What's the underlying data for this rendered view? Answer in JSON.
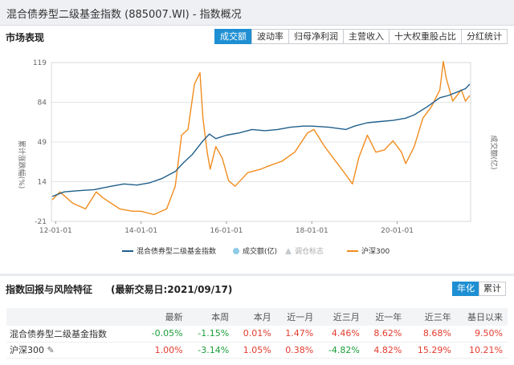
{
  "window": {
    "title": "混合债券型二级基金指数 (885007.WI) - 指数概况"
  },
  "market": {
    "header": "市场表现",
    "tabs": [
      "成交额",
      "波动率",
      "归母净利润",
      "主营收入",
      "十大权重股占比",
      "分红统计"
    ],
    "active_tab": 0
  },
  "returns": {
    "header": "指数回报与风险特征",
    "date_text": "(最新交易日:2021/09/17)",
    "toggle": [
      "年化",
      "累计"
    ],
    "active_toggle": 0,
    "columns": [
      "最新",
      "本周",
      "本月",
      "近一月",
      "近三月",
      "近一年",
      "近三年",
      "基日以来"
    ],
    "rows": [
      {
        "name": "混合债券型二级基金指数",
        "values": [
          "-0.05%",
          "-1.15%",
          "0.01%",
          "1.47%",
          "4.46%",
          "8.62%",
          "8.68%",
          "9.50%"
        ]
      },
      {
        "name": "沪深300",
        "values": [
          "1.00%",
          "-3.14%",
          "1.05%",
          "0.38%",
          "-4.82%",
          "4.82%",
          "15.29%",
          "10.21%"
        ]
      }
    ]
  },
  "colors": {
    "accent": "#1e8fd3",
    "series_fund": "#1f5f8b",
    "series_hs300": "#f08c1e",
    "up": "#e33b2e",
    "down": "#1a9f3a"
  },
  "chart_data": {
    "type": "line",
    "ylabel": "累计涨跌幅(%)",
    "y2label": "成交额(亿)",
    "ylim": [
      -21,
      119
    ],
    "yticks": [
      -21,
      14,
      49,
      84,
      119
    ],
    "xticks": [
      "12-01-01",
      "14-01-01",
      "16-01-01",
      "18-01-01",
      "20-01-01"
    ],
    "xlim": [
      2011.9,
      2021.72
    ],
    "grid": true,
    "legend": {
      "placement": "bottom",
      "items": [
        "混合债券型二级基金指数",
        "成交额(亿)",
        "调仓标志",
        "沪深300"
      ]
    },
    "series": [
      {
        "name": "混合债券型二级基金指数",
        "x": [
          2011.92,
          2012.2,
          2012.5,
          2012.9,
          2013.3,
          2013.6,
          2013.9,
          2014.2,
          2014.5,
          2014.8,
          2015.0,
          2015.2,
          2015.45,
          2015.6,
          2015.75,
          2016.0,
          2016.3,
          2016.6,
          2016.9,
          2017.2,
          2017.5,
          2017.8,
          2018.0,
          2018.4,
          2018.8,
          2019.0,
          2019.3,
          2019.6,
          2019.9,
          2020.2,
          2020.4,
          2020.7,
          2021.0,
          2021.2,
          2021.4,
          2021.6,
          2021.7
        ],
        "y": [
          1,
          5,
          6,
          7,
          10,
          12,
          11,
          13,
          17,
          23,
          31,
          38,
          50,
          56,
          52,
          55,
          57,
          60,
          59,
          60,
          62,
          63,
          63,
          62,
          60,
          63,
          66,
          67,
          68,
          70,
          73,
          80,
          88,
          90,
          93,
          96,
          100
        ]
      },
      {
        "name": "沪深300",
        "x": [
          2011.92,
          2012.1,
          2012.4,
          2012.7,
          2012.95,
          2013.1,
          2013.5,
          2013.8,
          2014.0,
          2014.3,
          2014.6,
          2014.8,
          2014.95,
          2015.1,
          2015.25,
          2015.38,
          2015.45,
          2015.55,
          2015.62,
          2015.75,
          2015.9,
          2016.05,
          2016.2,
          2016.5,
          2016.8,
          2017.0,
          2017.3,
          2017.6,
          2017.9,
          2018.05,
          2018.3,
          2018.6,
          2018.8,
          2018.95,
          2019.1,
          2019.3,
          2019.5,
          2019.7,
          2019.9,
          2020.1,
          2020.2,
          2020.4,
          2020.6,
          2020.8,
          2021.0,
          2021.08,
          2021.15,
          2021.3,
          2021.5,
          2021.6,
          2021.7
        ],
        "y": [
          -2,
          5,
          -5,
          -10,
          5,
          0,
          -10,
          -12,
          -12,
          -15,
          -10,
          10,
          55,
          60,
          100,
          110,
          70,
          40,
          25,
          45,
          35,
          15,
          10,
          22,
          25,
          28,
          32,
          40,
          57,
          60,
          45,
          30,
          20,
          12,
          35,
          55,
          40,
          42,
          50,
          40,
          30,
          45,
          70,
          80,
          95,
          120,
          105,
          85,
          95,
          85,
          90
        ]
      }
    ]
  }
}
